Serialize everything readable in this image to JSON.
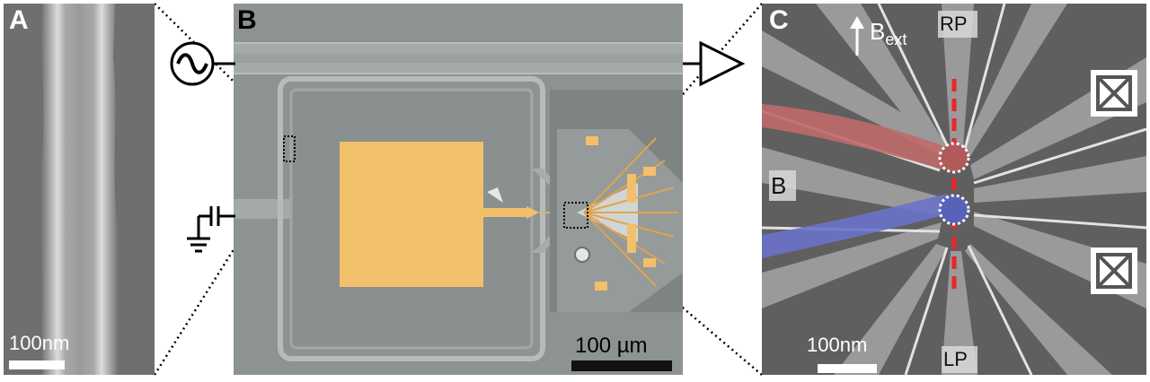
{
  "panels": [
    {
      "letter": "A",
      "scalebar_label": "100nm"
    },
    {
      "letter": "B",
      "scalebar_label": "100 µm"
    },
    {
      "letter": "C",
      "scalebar_label": "100nm",
      "field_label_main": "B",
      "field_label_sub": "ext",
      "gate_labels": {
        "top": "RP",
        "bottom": "LP",
        "left": "B"
      }
    }
  ],
  "colors": {
    "sem_background": "#6e6e6e",
    "nanowire_highlight": "#d9d9d9",
    "gold_pad": "#f2c06a",
    "chip_background": "#8f9494",
    "gate_red_tint": "#c06a6a",
    "gate_blue_tint": "#6a72c8",
    "dashed_line_red": "#e8262b",
    "scalebar_black": "#111111",
    "scalebar_white": "#ffffff"
  },
  "icons": [
    "ac-source-icon",
    "ground-capacitor-icon",
    "amplifier-triangle-icon",
    "crossed-box-contact-icon"
  ]
}
